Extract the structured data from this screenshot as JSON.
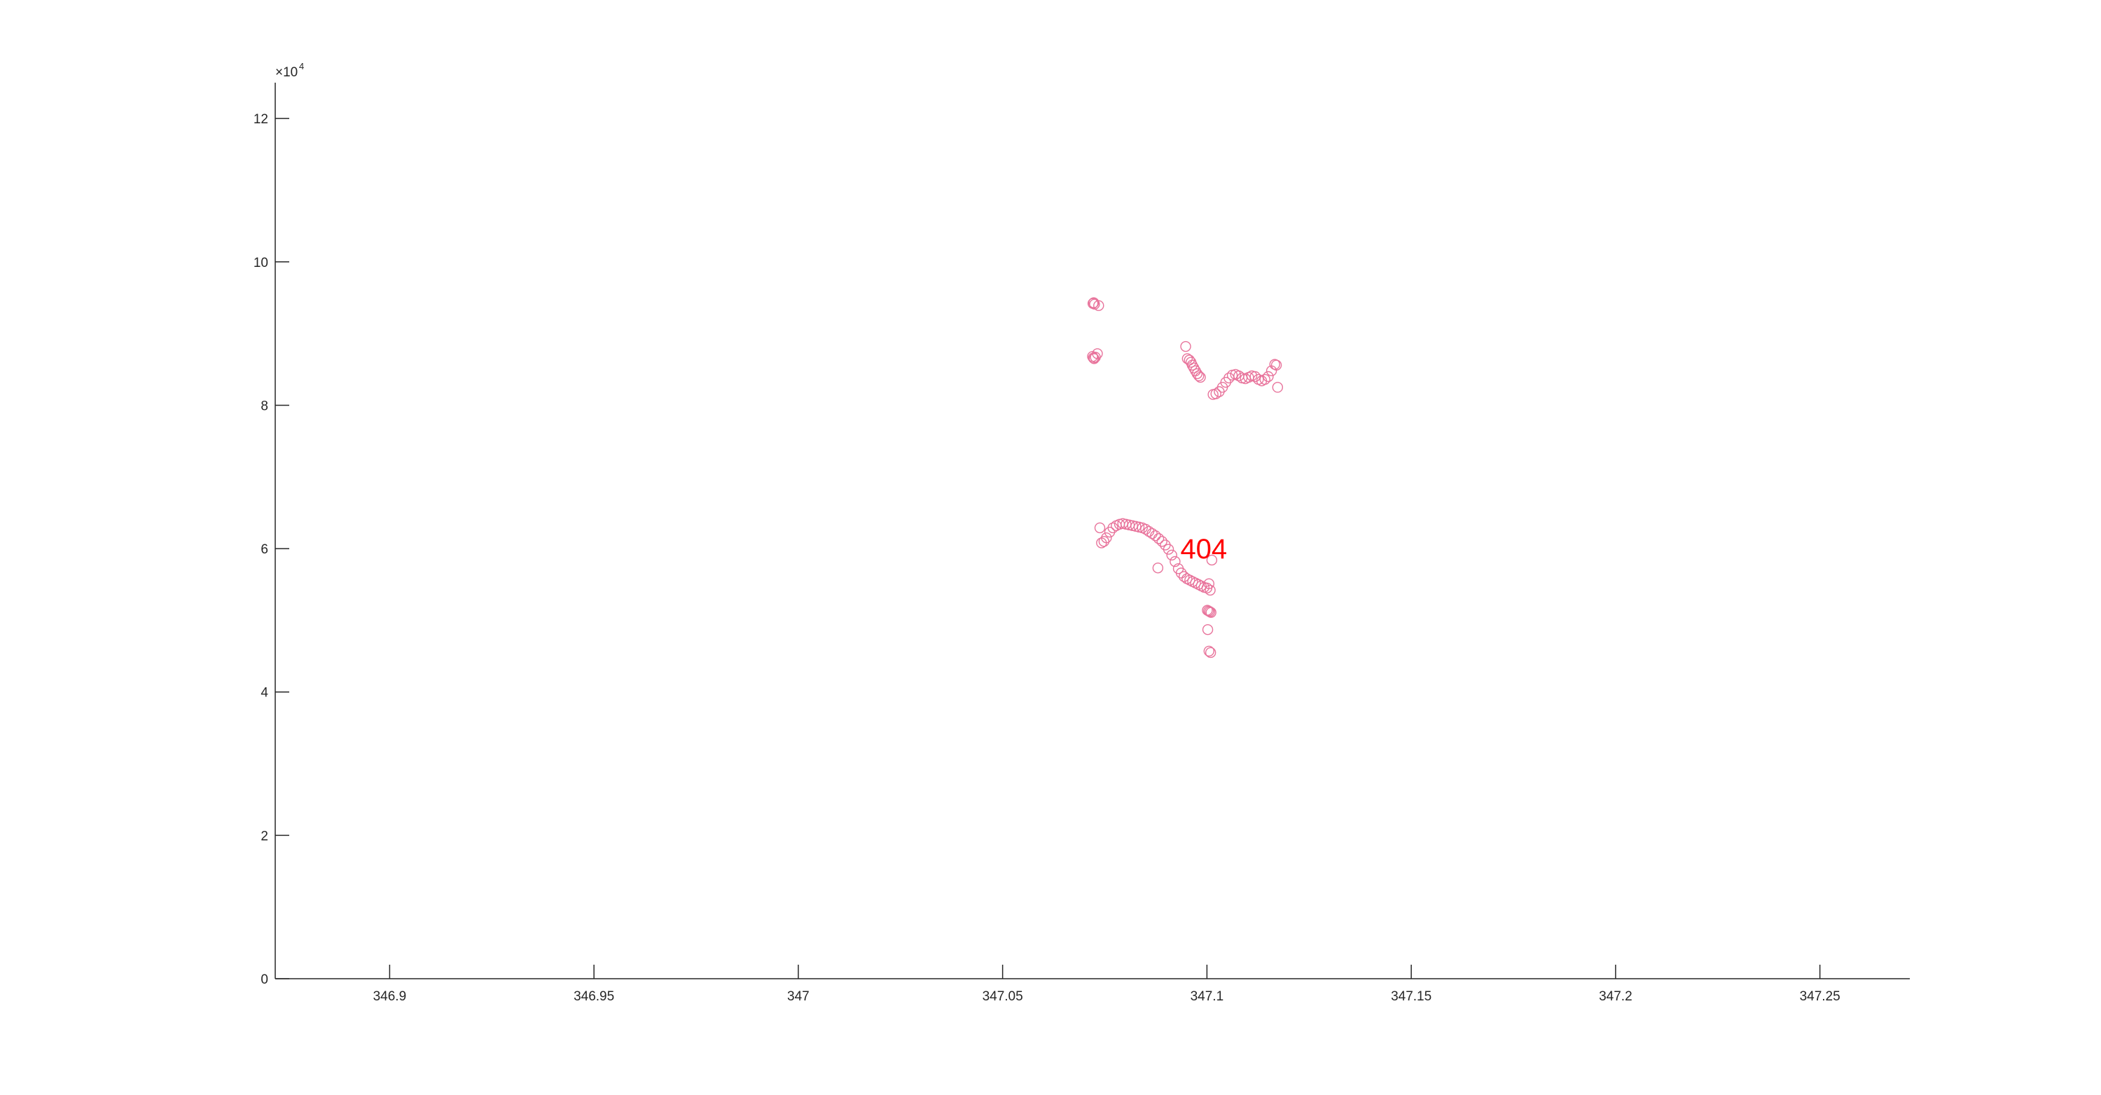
{
  "chart_data": {
    "type": "scatter",
    "title": "",
    "xlabel": "",
    "ylabel": "",
    "xlim": [
      346.872,
      347.272
    ],
    "ylim": [
      0,
      125000
    ],
    "grid": false,
    "legend": "none",
    "y_exponent": {
      "base": "×10",
      "power": "4"
    },
    "x_ticks": [
      346.9,
      346.95,
      347,
      347.05,
      347.1,
      347.15,
      347.2,
      347.25
    ],
    "x_tick_labels": [
      "346.9",
      "346.95",
      "347",
      "347.05",
      "347.1",
      "347.15",
      "347.2",
      "347.25"
    ],
    "y_ticks": [
      0,
      20000,
      40000,
      60000,
      80000,
      100000,
      120000
    ],
    "y_tick_labels": [
      "0",
      "2",
      "4",
      "6",
      "8",
      "10",
      "12"
    ],
    "marker_color": "#e8739b",
    "annotation": {
      "text": "404",
      "color": "#ff0000",
      "x": 347.0935,
      "y": 60000
    },
    "series": [
      {
        "x": [
          347.0721,
          347.0723,
          347.0725,
          347.0735,
          347.072,
          347.0722,
          347.0724,
          347.0727,
          347.0732,
          347.0948,
          347.0952,
          347.0957,
          347.0961,
          347.0964,
          347.0968,
          347.0972,
          347.0976,
          347.098,
          347.0984,
          347.1015,
          347.1022,
          347.103,
          347.1038,
          347.1046,
          347.1054,
          347.1062,
          347.107,
          347.1078,
          347.1086,
          347.1094,
          347.1102,
          347.111,
          347.1118,
          347.1126,
          347.1134,
          347.1142,
          347.115,
          347.1158,
          347.1166,
          347.117,
          347.1173,
          347.0738,
          347.0742,
          347.0748,
          347.0754,
          347.0762,
          347.077,
          347.0778,
          347.0786,
          347.0794,
          347.0802,
          347.081,
          347.0818,
          347.0826,
          347.0834,
          347.0842,
          347.085,
          347.0858,
          347.0866,
          347.0874,
          347.0882,
          347.089,
          347.0898,
          347.0906,
          347.0914,
          347.0922,
          347.093,
          347.0937,
          347.0944,
          347.0951,
          347.0958,
          347.0965,
          347.0972,
          347.0979,
          347.0986,
          347.0993,
          347.1,
          347.088,
          347.1005,
          347.1008,
          347.1012,
          347.1001,
          347.1004,
          347.1007,
          347.101,
          347.1002,
          347.1005,
          347.1009
        ],
        "y": [
          94200,
          94300,
          94100,
          93900,
          86800,
          86600,
          86500,
          86700,
          87200,
          88200,
          86500,
          86300,
          86000,
          85600,
          85200,
          84800,
          84400,
          84100,
          83900,
          81500,
          81600,
          81900,
          82500,
          83200,
          83800,
          84200,
          84300,
          84100,
          83800,
          83700,
          83900,
          84100,
          84000,
          83600,
          83400,
          83600,
          84000,
          84800,
          85700,
          85600,
          82500,
          62900,
          60800,
          61000,
          61500,
          62300,
          62900,
          63200,
          63400,
          63500,
          63400,
          63300,
          63200,
          63100,
          63000,
          62900,
          62700,
          62400,
          62100,
          61800,
          61400,
          61000,
          60500,
          59900,
          59100,
          58200,
          57200,
          56600,
          56100,
          55800,
          55600,
          55400,
          55200,
          55000,
          54800,
          54600,
          54500,
          57300,
          55100,
          54200,
          58400,
          51400,
          51300,
          51200,
          51100,
          48700,
          45700,
          45500
        ]
      }
    ]
  }
}
